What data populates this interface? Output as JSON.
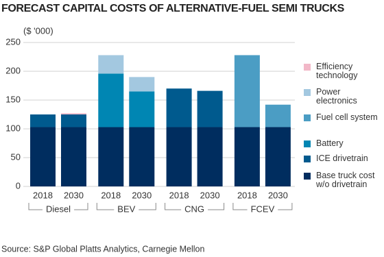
{
  "chart_data": {
    "type": "stacked-bar",
    "title": "FORECAST CAPITAL COSTS OF ALTERNATIVE-FUEL SEMI TRUCKS",
    "y_label": "($ '000)",
    "categories": [
      "2018",
      "2030",
      "2018",
      "2030",
      "2018",
      "2030",
      "2018",
      "2030"
    ],
    "groups": [
      "Diesel",
      "BEV",
      "CNG",
      "FCEV"
    ],
    "series": [
      {
        "name": "Base truck cost w/o drivetrain",
        "color": "#002d5f",
        "values": [
          103,
          103,
          103,
          103,
          103,
          103,
          103,
          103
        ]
      },
      {
        "name": "ICE drivetrain",
        "color": "#005a8e",
        "values": [
          22,
          22,
          null,
          null,
          67,
          63,
          null,
          null
        ]
      },
      {
        "name": "Battery",
        "color": "#0086b3",
        "values": [
          null,
          null,
          93,
          62,
          null,
          null,
          null,
          null
        ]
      },
      {
        "name": "Fuel cell system",
        "color": "#4b9dc4",
        "values": [
          null,
          null,
          null,
          null,
          null,
          null,
          125,
          39
        ]
      },
      {
        "name": "Power electronics",
        "color": "#a3c8e0",
        "values": [
          null,
          null,
          32,
          25,
          null,
          null,
          null,
          null
        ]
      },
      {
        "name": "Efficiency technology",
        "color": "#f2b8c8",
        "values": [
          null,
          2,
          null,
          null,
          null,
          null,
          null,
          null
        ]
      }
    ],
    "ylim": [
      0,
      250
    ],
    "yticks": [
      0,
      50,
      100,
      150,
      200,
      250
    ],
    "grid": true,
    "legend": "right",
    "source": "Source: S&P Global Platts Analytics, Carnegie  Mellon"
  }
}
